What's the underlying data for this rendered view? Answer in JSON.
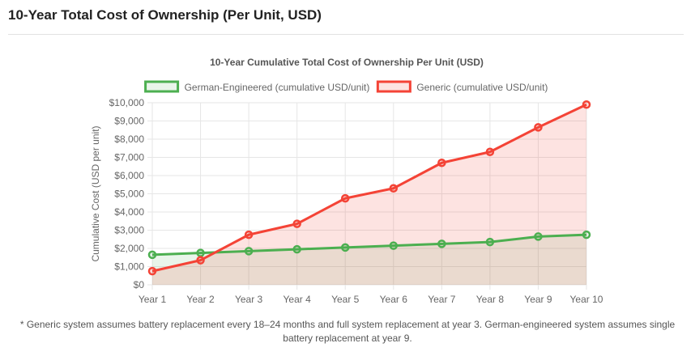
{
  "section": {
    "title": "10-Year Total Cost of Ownership (Per Unit, USD)"
  },
  "footnote": "* Generic system assumes battery replacement every 18–24 months and full system replacement at year 3. German-engineered system assumes single battery replacement at year 9.",
  "chart_data": {
    "type": "line",
    "title": "10-Year Cumulative Total Cost of Ownership Per Unit (USD)",
    "xlabel": "",
    "ylabel": "Cumulative Cost (USD per unit)",
    "categories": [
      "Year 1",
      "Year 2",
      "Year 3",
      "Year 4",
      "Year 5",
      "Year 6",
      "Year 7",
      "Year 8",
      "Year 9",
      "Year 10"
    ],
    "ylim": [
      0,
      10000
    ],
    "yticks": [
      0,
      1000,
      2000,
      3000,
      4000,
      5000,
      6000,
      7000,
      8000,
      9000,
      10000
    ],
    "ytick_labels": [
      "$0",
      "$1,000",
      "$2,000",
      "$3,000",
      "$4,000",
      "$5,000",
      "$6,000",
      "$7,000",
      "$8,000",
      "$9,000",
      "$10,000"
    ],
    "grid": true,
    "legend_position": "top",
    "series": [
      {
        "name": "German-Engineered (cumulative USD/unit)",
        "values": [
          1650,
          1750,
          1850,
          1950,
          2050,
          2150,
          2250,
          2350,
          2650,
          2750
        ],
        "color": "#4caf50",
        "fill": "rgba(76,175,80,0.12)"
      },
      {
        "name": "Generic (cumulative USD/unit)",
        "values": [
          750,
          1350,
          2750,
          3350,
          4750,
          5300,
          6700,
          7300,
          8650,
          9900
        ],
        "color": "#f44336",
        "fill": "rgba(244,67,54,0.15)"
      }
    ]
  }
}
